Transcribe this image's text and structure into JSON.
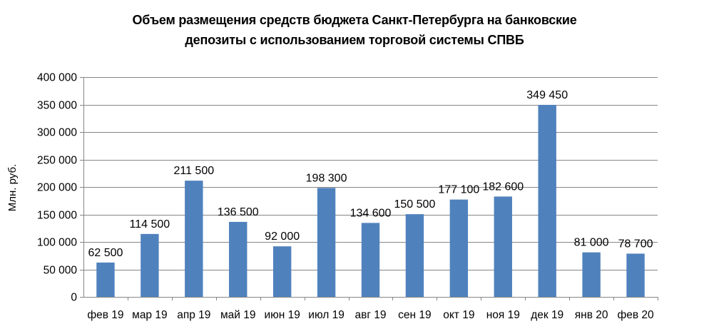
{
  "chart_data": {
    "type": "bar",
    "title_line1": "Объем размещения средств бюджета Санкт-Петербурга на банковские",
    "title_line2": "депозиты с использованием торговой системы СПВБ",
    "ylabel": "Млн. руб.",
    "xlabel": "",
    "ylim": [
      0,
      400000
    ],
    "yticks": [
      0,
      50000,
      100000,
      150000,
      200000,
      250000,
      300000,
      350000,
      400000
    ],
    "ytick_labels": [
      "0",
      "50 000",
      "100 000",
      "150 000",
      "200 000",
      "250 000",
      "300 000",
      "350 000",
      "400 000"
    ],
    "grid": true,
    "legend": "none",
    "bar_color": "#4f81bd",
    "categories": [
      "фев 19",
      "мар 19",
      "апр 19",
      "май 19",
      "июн 19",
      "июл 19",
      "авг 19",
      "сен 19",
      "окт 19",
      "ноя 19",
      "дек 19",
      "янв 20",
      "фев 20"
    ],
    "values": [
      62500,
      114500,
      211500,
      136500,
      92000,
      198300,
      134600,
      150500,
      177100,
      182600,
      349450,
      81000,
      78700
    ],
    "value_labels": [
      "62 500",
      "114 500",
      "211 500",
      "136 500",
      "92 000",
      "198 300",
      "134 600",
      "150 500",
      "177 100",
      "182 600",
      "349 450",
      "81 000",
      "78 700"
    ]
  }
}
